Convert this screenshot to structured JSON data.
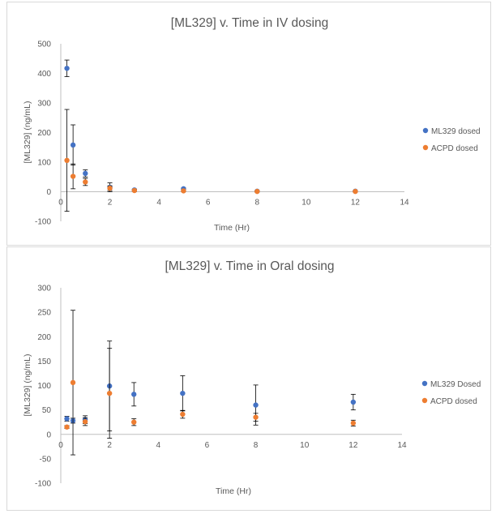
{
  "chart_data": [
    {
      "type": "scatter",
      "title": "[ML329] v. Time in IV dosing",
      "xlabel": "Time (Hr)",
      "ylabel": "[ML329] (ng/mL)",
      "xlim": [
        0,
        14
      ],
      "ylim": [
        -100,
        500
      ],
      "xticks": [
        "0",
        "2",
        "4",
        "6",
        "8",
        "10",
        "12",
        "14"
      ],
      "yticks": [
        "-100",
        "0",
        "100",
        "200",
        "300",
        "400",
        "500"
      ],
      "grid": false,
      "legend_position": "right",
      "series": [
        {
          "name": "ML329 dosed",
          "color": "#4472c4",
          "points": [
            {
              "x": 0.25,
              "y": 417,
              "err": 28
            },
            {
              "x": 0.5,
              "y": 158,
              "err": 68
            },
            {
              "x": 1,
              "y": 62,
              "err": 12
            },
            {
              "x": 2,
              "y": 15,
              "err": 15
            },
            {
              "x": 3,
              "y": 6,
              "err": 3
            },
            {
              "x": 5,
              "y": 10,
              "err": 3
            },
            {
              "x": 8,
              "y": 2,
              "err": 2
            },
            {
              "x": 12,
              "y": 2,
              "err": 2
            }
          ]
        },
        {
          "name": "ACPD dosed",
          "color": "#ed7d31",
          "points": [
            {
              "x": 0.25,
              "y": 106,
              "err": 172
            },
            {
              "x": 0.5,
              "y": 52,
              "err": 42
            },
            {
              "x": 1,
              "y": 33,
              "err": 12
            },
            {
              "x": 2,
              "y": 12,
              "err": 8
            },
            {
              "x": 3,
              "y": 4,
              "err": 3
            },
            {
              "x": 5,
              "y": 3,
              "err": 3
            },
            {
              "x": 8,
              "y": 1,
              "err": 2
            },
            {
              "x": 12,
              "y": 1,
              "err": 2
            }
          ]
        }
      ]
    },
    {
      "type": "scatter",
      "title": "[ML329] v. Time in Oral dosing",
      "xlabel": "Time (Hr)",
      "ylabel": "[ML329] (ng/mL)",
      "xlim": [
        0,
        14
      ],
      "ylim": [
        -100,
        300
      ],
      "xticks": [
        "0",
        "2",
        "4",
        "6",
        "8",
        "10",
        "12",
        "14"
      ],
      "yticks": [
        "-100",
        "-50",
        "0",
        "50",
        "100",
        "150",
        "200",
        "250",
        "300"
      ],
      "grid": false,
      "legend_position": "right",
      "series": [
        {
          "name": "ML329 Dosed",
          "color": "#4472c4",
          "points": [
            {
              "x": 0.25,
              "y": 32,
              "err": 5
            },
            {
              "x": 0.5,
              "y": 28,
              "err": 5
            },
            {
              "x": 1,
              "y": 30,
              "err": 8
            },
            {
              "x": 2,
              "y": 99,
              "err": 92
            },
            {
              "x": 3,
              "y": 82,
              "err": 24
            },
            {
              "x": 5,
              "y": 84,
              "err": 36
            },
            {
              "x": 8,
              "y": 60,
              "err": 41
            },
            {
              "x": 12,
              "y": 66,
              "err": 16
            }
          ]
        },
        {
          "name": "ACPD dosed",
          "color": "#ed7d31",
          "points": [
            {
              "x": 0.25,
              "y": 15,
              "err": 3
            },
            {
              "x": 0.5,
              "y": 106,
              "err": 148
            },
            {
              "x": 1,
              "y": 26,
              "err": 8
            },
            {
              "x": 2,
              "y": 84,
              "err": 92
            },
            {
              "x": 3,
              "y": 25,
              "err": 7
            },
            {
              "x": 5,
              "y": 41,
              "err": 8
            },
            {
              "x": 8,
              "y": 35,
              "err": 8
            },
            {
              "x": 12,
              "y": 23,
              "err": 6
            }
          ]
        }
      ]
    }
  ]
}
